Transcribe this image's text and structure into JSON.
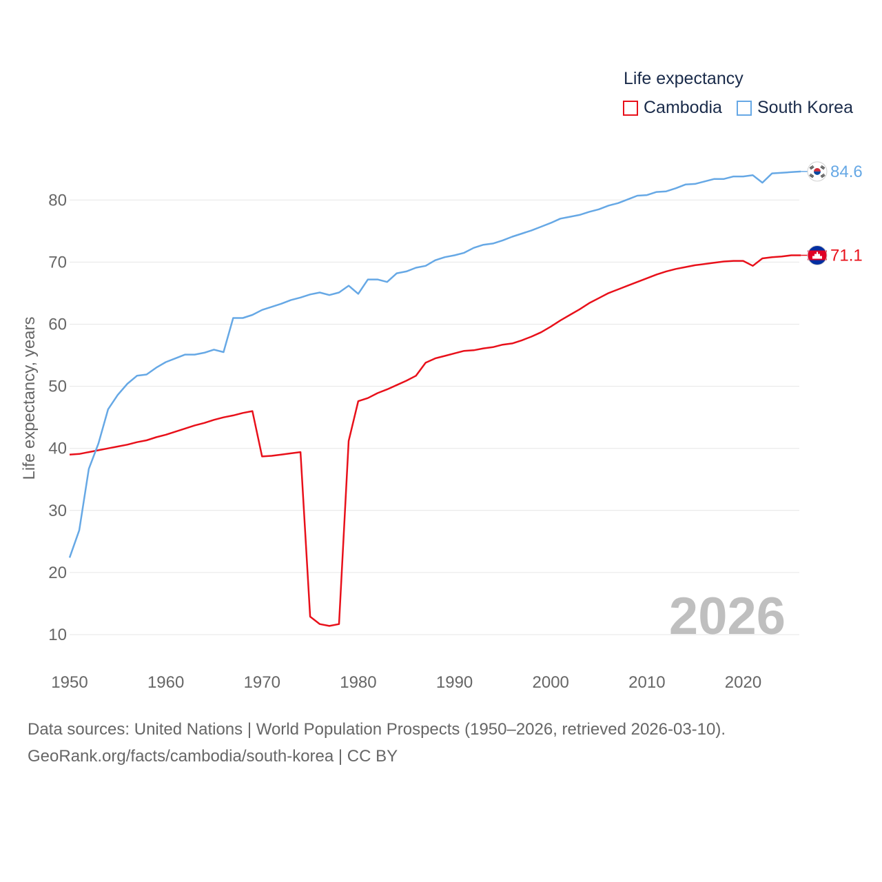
{
  "legend": {
    "title": "Life expectancy",
    "items": [
      {
        "label": "Cambodia",
        "color": "#e8101a"
      },
      {
        "label": "South Korea",
        "color": "#66a8e5"
      }
    ]
  },
  "source": {
    "line1": "Data sources: United Nations | World Population Prospects (1950–2026, retrieved 2026-03-10).",
    "line2": "GeoRank.org/facts/cambodia/south-korea | CC BY"
  },
  "chart_data": {
    "type": "line",
    "title": "Life expectancy",
    "xlabel": "",
    "ylabel": "Life expectancy, years",
    "xlim": [
      1950,
      2026
    ],
    "ylim": [
      10,
      87
    ],
    "x_ticks": [
      1950,
      1960,
      1970,
      1980,
      1990,
      2000,
      2010,
      2020
    ],
    "y_ticks": [
      10,
      20,
      30,
      40,
      50,
      60,
      70,
      80
    ],
    "grid": true,
    "legend_position": "top-right",
    "year_label": "2026",
    "x": [
      1950,
      1951,
      1952,
      1953,
      1954,
      1955,
      1956,
      1957,
      1958,
      1959,
      1960,
      1961,
      1962,
      1963,
      1964,
      1965,
      1966,
      1967,
      1968,
      1969,
      1970,
      1971,
      1972,
      1973,
      1974,
      1975,
      1976,
      1977,
      1978,
      1979,
      1980,
      1981,
      1982,
      1983,
      1984,
      1985,
      1986,
      1987,
      1988,
      1989,
      1990,
      1991,
      1992,
      1993,
      1994,
      1995,
      1996,
      1997,
      1998,
      1999,
      2000,
      2001,
      2002,
      2003,
      2004,
      2005,
      2006,
      2007,
      2008,
      2009,
      2010,
      2011,
      2012,
      2013,
      2014,
      2015,
      2016,
      2017,
      2018,
      2019,
      2020,
      2021,
      2022,
      2023,
      2024,
      2025,
      2026
    ],
    "series": [
      {
        "name": "Cambodia",
        "color": "#e8101a",
        "end_label": "71.1",
        "flag": "cambodia-flag",
        "values": [
          39.0,
          39.1,
          39.4,
          39.7,
          40.0,
          40.3,
          40.6,
          41.0,
          41.3,
          41.8,
          42.2,
          42.7,
          43.2,
          43.7,
          44.1,
          44.6,
          45.0,
          45.3,
          45.7,
          46.0,
          38.7,
          38.8,
          39.0,
          39.2,
          39.4,
          12.9,
          11.7,
          11.4,
          11.7,
          41.2,
          47.6,
          48.1,
          48.9,
          49.5,
          50.2,
          50.9,
          51.7,
          53.8,
          54.5,
          54.9,
          55.3,
          55.7,
          55.8,
          56.1,
          56.3,
          56.7,
          56.9,
          57.4,
          58.0,
          58.7,
          59.6,
          60.6,
          61.5,
          62.4,
          63.4,
          64.2,
          65.0,
          65.6,
          66.2,
          66.8,
          67.4,
          68.0,
          68.5,
          68.9,
          69.2,
          69.5,
          69.7,
          69.9,
          70.1,
          70.2,
          70.2,
          69.4,
          70.6,
          70.8,
          70.9,
          71.1,
          71.1
        ]
      },
      {
        "name": "South Korea",
        "color": "#66a8e5",
        "end_label": "84.6",
        "flag": "south-korea-flag",
        "values": [
          22.4,
          26.8,
          36.7,
          40.8,
          46.3,
          48.6,
          50.4,
          51.7,
          51.9,
          53.0,
          53.9,
          54.5,
          55.1,
          55.1,
          55.4,
          55.9,
          55.5,
          61.0,
          61.0,
          61.5,
          62.3,
          62.8,
          63.3,
          63.9,
          64.3,
          64.8,
          65.1,
          64.7,
          65.1,
          66.2,
          64.9,
          67.2,
          67.2,
          66.8,
          68.2,
          68.5,
          69.1,
          69.4,
          70.3,
          70.8,
          71.1,
          71.5,
          72.3,
          72.8,
          73.0,
          73.5,
          74.1,
          74.6,
          75.1,
          75.7,
          76.3,
          77.0,
          77.3,
          77.6,
          78.1,
          78.5,
          79.1,
          79.5,
          80.1,
          80.7,
          80.8,
          81.3,
          81.4,
          81.9,
          82.5,
          82.6,
          83.0,
          83.4,
          83.4,
          83.8,
          83.8,
          84.0,
          82.8,
          84.3,
          84.4,
          84.5,
          84.6
        ]
      }
    ]
  }
}
